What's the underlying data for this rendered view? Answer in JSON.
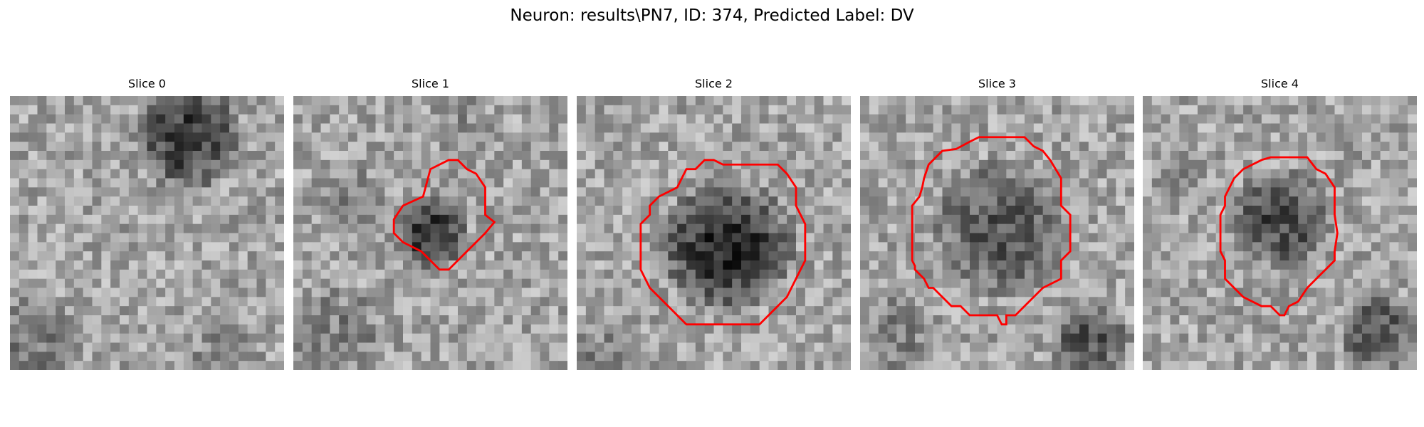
{
  "figure": {
    "suptitle": "Neuron: results\\PN7, ID: 374, Predicted Label: DV"
  },
  "panels": [
    {
      "title": "Slice 0",
      "has_contour": false
    },
    {
      "title": "Slice 1",
      "has_contour": true
    },
    {
      "title": "Slice 2",
      "has_contour": true
    },
    {
      "title": "Slice 3",
      "has_contour": true
    },
    {
      "title": "Slice 4",
      "has_contour": true
    }
  ],
  "style": {
    "contour_color": "#ff0000",
    "colormap": "gray"
  }
}
